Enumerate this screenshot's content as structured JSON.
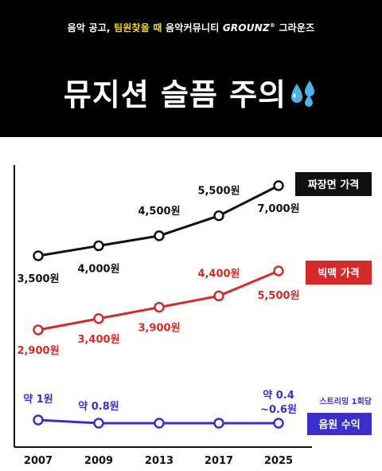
{
  "header": {
    "tagline_part1": "음악 공고, ",
    "tagline_part2": "팀원찾을 때",
    "tagline_part3": " 음악커뮤니티 ",
    "tagline_brand": "GROUNZ",
    "tagline_part4": " 그라운즈",
    "headline": "뮤지션 슬픔 주의",
    "headline_icon": "sweat-droplets-icon"
  },
  "colors": {
    "background_top": "#000000",
    "tagline_highlight": "#f2d23c",
    "jjajang": "#111111",
    "bigmac": "#d42a2a",
    "streaming": "#3a2fc8"
  },
  "chart_data": {
    "type": "line",
    "x": [
      "2007",
      "2009",
      "2013",
      "2017",
      "2025"
    ],
    "series": [
      {
        "name": "짜장면 가격",
        "values": [
          3500,
          4000,
          4500,
          5500,
          7000
        ],
        "labels": [
          "3,500원",
          "4,000원",
          "4,500원",
          "5,500원",
          "7,000원"
        ],
        "color": "#111111"
      },
      {
        "name": "빅맥 가격",
        "values": [
          2900,
          3400,
          3900,
          4400,
          5500
        ],
        "labels": [
          "2,900원",
          "3,400원",
          "3,900원",
          "4,400원",
          "5,500원"
        ],
        "color": "#d42a2a"
      },
      {
        "name": "음원 수익",
        "note": "스트리밍 1회당",
        "values": [
          1,
          0.8,
          null,
          null,
          0.5
        ],
        "labels": [
          "약 1원",
          "약 0.8원",
          "",
          "",
          "약 0.4 ~0.6원"
        ],
        "color": "#3a2fc8"
      }
    ],
    "grid": false,
    "legend": "right, boxed labels beside each line"
  }
}
